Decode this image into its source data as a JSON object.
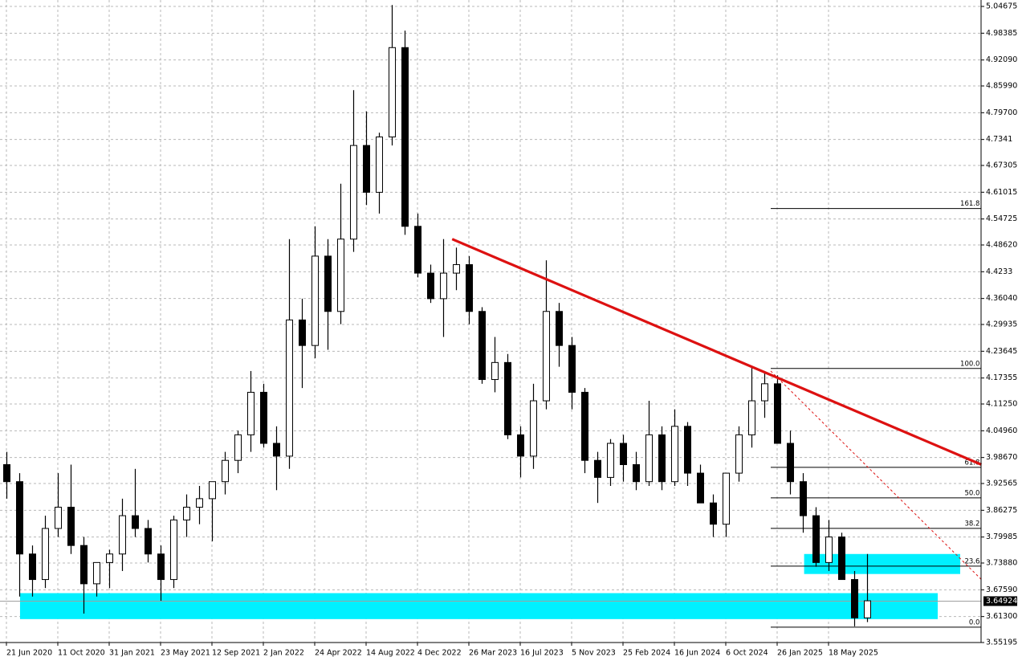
{
  "chart_data": {
    "type": "candlestick",
    "categories": [
      "21 Jun 2020",
      null,
      null,
      null,
      "11 Oct 2020",
      null,
      null,
      null,
      "31 Jan 2021",
      null,
      null,
      null,
      "23 May 2021",
      null,
      null,
      null,
      "12 Sep 2021",
      null,
      null,
      null,
      "2 Jan 2022",
      null,
      null,
      null,
      "24 Apr 2022",
      null,
      null,
      null,
      "14 Aug 2022",
      null,
      null,
      null,
      "4 Dec 2022",
      null,
      null,
      null,
      "26 Mar 2023",
      null,
      null,
      null,
      "16 Jul 2023",
      null,
      null,
      null,
      "5 Nov 2023",
      null,
      null,
      null,
      "25 Feb 2024",
      null,
      null,
      null,
      "16 Jun 2024",
      null,
      null,
      null,
      "6 Oct 2024",
      null,
      null,
      null,
      "26 Jan 2025",
      null,
      null,
      null,
      "18 May 2025",
      null,
      null,
      null
    ],
    "open": [
      3.97,
      3.93,
      3.76,
      3.7,
      3.82,
      3.87,
      3.78,
      3.69,
      3.74,
      3.76,
      3.85,
      3.82,
      3.76,
      3.7,
      3.84,
      3.87,
      3.89,
      3.93,
      3.98,
      4.04,
      4.14,
      4.02,
      3.99,
      4.31,
      4.25,
      4.46,
      4.33,
      4.5,
      4.72,
      4.61,
      4.74,
      4.95,
      4.53,
      4.42,
      4.36,
      4.42,
      4.44,
      4.33,
      4.17,
      4.21,
      4.04,
      3.99,
      4.12,
      4.33,
      4.25,
      4.14,
      3.98,
      3.94,
      4.02,
      3.97,
      3.93,
      4.04,
      3.93,
      4.06,
      3.95,
      3.88,
      3.83,
      3.95,
      4.04,
      4.12,
      4.16,
      4.02,
      3.93,
      3.85,
      3.74,
      3.8,
      3.7,
      3.61
    ],
    "high": [
      4.0,
      3.95,
      3.78,
      3.85,
      3.95,
      3.97,
      3.8,
      3.73,
      3.77,
      3.89,
      3.96,
      3.84,
      3.78,
      3.85,
      3.9,
      3.92,
      3.93,
      4.0,
      4.05,
      4.19,
      4.16,
      4.06,
      4.5,
      4.36,
      4.53,
      4.5,
      4.63,
      4.85,
      4.8,
      4.75,
      5.05,
      4.99,
      4.56,
      4.44,
      4.5,
      4.48,
      4.46,
      4.34,
      4.27,
      4.23,
      4.06,
      4.16,
      4.45,
      4.35,
      4.27,
      4.15,
      4.0,
      4.03,
      4.04,
      4.0,
      4.12,
      4.06,
      4.1,
      4.07,
      3.97,
      3.9,
      3.95,
      4.06,
      4.2,
      4.19,
      4.18,
      4.05,
      3.95,
      3.87,
      3.84,
      3.81,
      3.72,
      3.76
    ],
    "low": [
      3.89,
      3.66,
      3.66,
      3.68,
      3.8,
      3.76,
      3.62,
      3.66,
      3.68,
      3.72,
      3.8,
      3.74,
      3.65,
      3.68,
      3.8,
      3.83,
      3.79,
      3.9,
      3.95,
      4.0,
      4.01,
      3.91,
      3.96,
      4.15,
      4.22,
      4.24,
      4.3,
      4.47,
      4.58,
      4.56,
      4.72,
      4.51,
      4.41,
      4.35,
      4.27,
      4.38,
      4.3,
      4.16,
      4.14,
      4.03,
      3.94,
      3.96,
      4.1,
      4.2,
      4.1,
      3.95,
      3.88,
      3.92,
      3.93,
      3.91,
      3.92,
      3.91,
      3.92,
      3.92,
      3.88,
      3.8,
      3.8,
      3.93,
      4.01,
      4.08,
      4.02,
      3.9,
      3.81,
      3.73,
      3.72,
      3.7,
      3.59,
      3.6
    ],
    "close": [
      3.93,
      3.76,
      3.7,
      3.82,
      3.87,
      3.78,
      3.69,
      3.74,
      3.76,
      3.85,
      3.82,
      3.76,
      3.7,
      3.84,
      3.87,
      3.89,
      3.93,
      3.98,
      4.04,
      4.14,
      4.02,
      3.99,
      4.31,
      4.25,
      4.46,
      4.33,
      4.5,
      4.72,
      4.61,
      4.74,
      4.95,
      4.53,
      4.42,
      4.36,
      4.42,
      4.44,
      4.33,
      4.17,
      4.21,
      4.04,
      3.99,
      4.12,
      4.33,
      4.25,
      4.14,
      3.98,
      3.94,
      4.02,
      3.97,
      3.93,
      4.04,
      3.93,
      4.06,
      3.95,
      3.88,
      3.83,
      3.95,
      4.04,
      4.12,
      4.16,
      4.02,
      3.93,
      3.85,
      3.74,
      3.8,
      3.7,
      3.61,
      3.65
    ],
    "up_color": "#ffffff",
    "down_color": "#000000",
    "ylim": [
      3.54063,
      5.06185
    ],
    "yticks": [
      5.04675,
      4.98385,
      {
        "value": 4.9209,
        "label": "4.92090"
      },
      {
        "value": 4.8599,
        "label": "4.85990"
      },
      {
        "value": 4.797,
        "label": "4.79700"
      },
      4.7341,
      4.67305,
      4.61015,
      4.54725,
      {
        "value": 4.4862,
        "label": "4.48620"
      },
      4.4233,
      {
        "value": 4.3604,
        "label": "4.36040"
      },
      4.29935,
      4.23645,
      4.17355,
      {
        "value": 4.1125,
        "label": "4.11250"
      },
      {
        "value": 4.0496,
        "label": "4.04960"
      },
      {
        "value": 3.9867,
        "label": "3.98670"
      },
      3.92565,
      3.86275,
      3.79985,
      {
        "value": 3.7388,
        "label": "3.73880"
      },
      {
        "value": 3.6759,
        "label": "3.67590"
      },
      {
        "value": 3.613,
        "label": "3.61300"
      },
      3.55195
    ],
    "grid": true,
    "current_price": 3.64924,
    "trendline": {
      "color": "#dd1111",
      "x": [
        34.7,
        75.9
      ],
      "y": [
        4.5,
        3.97
      ]
    },
    "projection": {
      "color": "#dd1111",
      "x": [
        59.5,
        75.9
      ],
      "y": [
        4.19,
        3.7
      ]
    },
    "zones": [
      {
        "color": "#00f0ff",
        "x": [
          1.06,
          72.5
        ],
        "top": 3.668,
        "bottom": 3.607
      },
      {
        "color": "#00f0ff",
        "x": [
          62.1,
          74.25
        ],
        "top": 3.76,
        "bottom": 3.713
      }
    ],
    "fibonacci": {
      "x": [
        59.5,
        75.9
      ],
      "low": 3.588,
      "high": 4.196,
      "levels": [
        {
          "value": 161.8,
          "label": "161.8"
        },
        {
          "value": 100,
          "label": "100.0"
        },
        61.8,
        {
          "value": 50,
          "label": "50.0"
        },
        38.2,
        23.6,
        {
          "value": 0,
          "label": "0.0"
        }
      ]
    }
  }
}
